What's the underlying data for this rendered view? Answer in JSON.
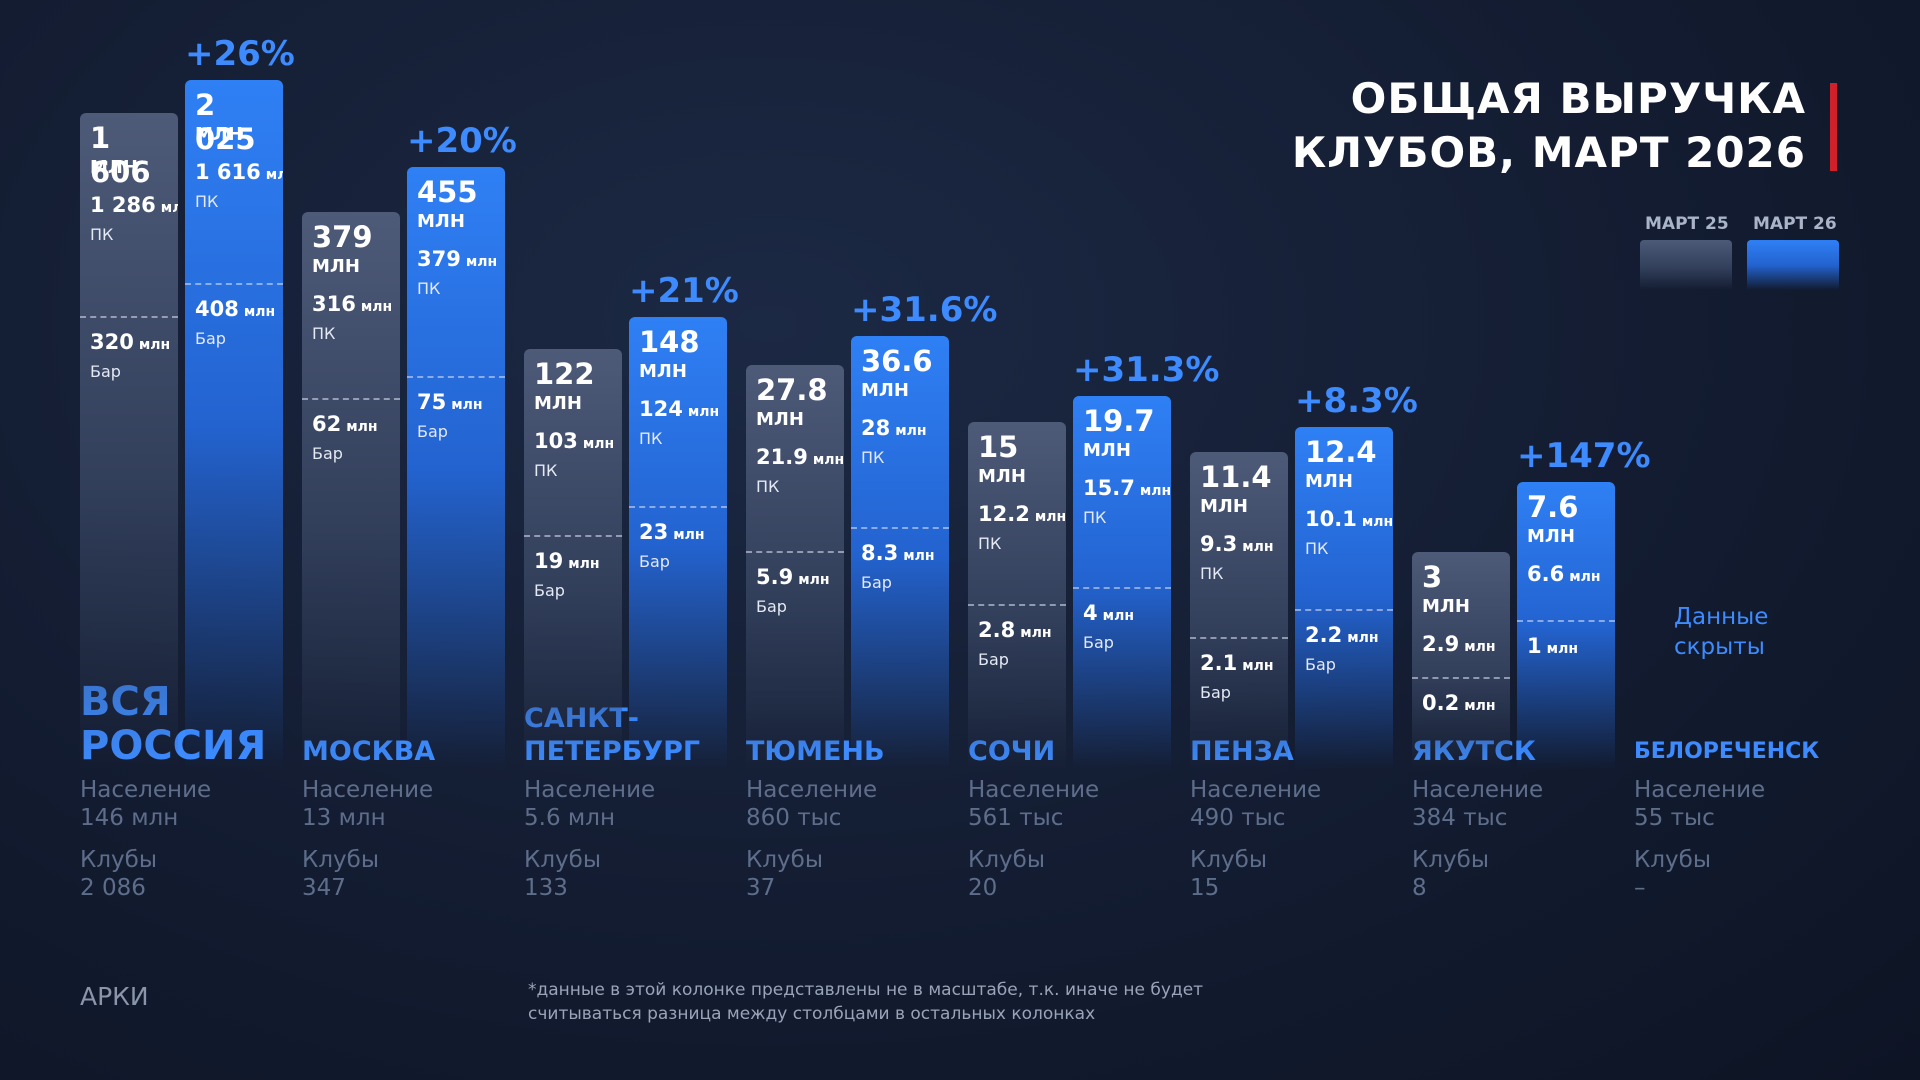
{
  "title_lines": [
    "ОБЩАЯ ВЫРУЧКА",
    "КЛУБОВ, МАРТ 2026"
  ],
  "legend": [
    "МАРТ 25",
    "МАРТ 26"
  ],
  "regions": [
    {
      "name": "ВСЯ РОССИЯ",
      "growth": "+26%",
      "population_label": "Население",
      "population": "146 млн",
      "clubs_label": "Клубы",
      "clubs": "2 086",
      "bars": [
        {
          "total": "1 606",
          "unit": "МЛН",
          "pk": {
            "value": "1 286",
            "unit": "млн",
            "label": "ПК"
          },
          "bar": {
            "value": "320",
            "unit": "млн",
            "label": "Бар"
          }
        },
        {
          "total": "2 025",
          "unit": "МЛН",
          "pk": {
            "value": "1 616",
            "unit": "млн",
            "label": "ПК"
          },
          "bar": {
            "value": "408",
            "unit": "млн",
            "label": "Бар"
          }
        }
      ]
    },
    {
      "name": "МОСКВА",
      "growth": "+20%",
      "population_label": "Население",
      "population": "13 млн",
      "clubs_label": "Клубы",
      "clubs": "347",
      "bars": [
        {
          "total": "379",
          "unit": "МЛН",
          "pk": {
            "value": "316",
            "unit": "млн",
            "label": "ПК"
          },
          "bar": {
            "value": "62",
            "unit": "млн",
            "label": "Бар"
          }
        },
        {
          "total": "455",
          "unit": "МЛН",
          "pk": {
            "value": "379",
            "unit": "млн",
            "label": "ПК"
          },
          "bar": {
            "value": "75",
            "unit": "млн",
            "label": "Бар"
          }
        }
      ]
    },
    {
      "name": "САНКТ-ПЕТЕРБУРГ",
      "growth": "+21%",
      "population_label": "Население",
      "population": "5.6 млн",
      "clubs_label": "Клубы",
      "clubs": "133",
      "bars": [
        {
          "total": "122",
          "unit": "МЛН",
          "pk": {
            "value": "103",
            "unit": "млн",
            "label": "ПК"
          },
          "bar": {
            "value": "19",
            "unit": "млн",
            "label": "Бар"
          }
        },
        {
          "total": "148",
          "unit": "МЛН",
          "pk": {
            "value": "124",
            "unit": "млн",
            "label": "ПК"
          },
          "bar": {
            "value": "23",
            "unit": "млн",
            "label": "Бар"
          }
        }
      ]
    },
    {
      "name": "ТЮМЕНЬ",
      "growth": "+31.6%",
      "population_label": "Население",
      "population": "860 тыс",
      "clubs_label": "Клубы",
      "clubs": "37",
      "bars": [
        {
          "total": "27.8",
          "unit": "МЛН",
          "pk": {
            "value": "21.9",
            "unit": "млн",
            "label": "ПК"
          },
          "bar": {
            "value": "5.9",
            "unit": "млн",
            "label": "Бар"
          }
        },
        {
          "total": "36.6",
          "unit": "МЛН",
          "pk": {
            "value": "28",
            "unit": "млн",
            "label": "ПК"
          },
          "bar": {
            "value": "8.3",
            "unit": "млн",
            "label": "Бар"
          }
        }
      ]
    },
    {
      "name": "СОЧИ",
      "growth": "+31.3%",
      "population_label": "Население",
      "population": "561 тыс",
      "clubs_label": "Клубы",
      "clubs": "20",
      "bars": [
        {
          "total": "15",
          "unit": "МЛН",
          "pk": {
            "value": "12.2",
            "unit": "млн",
            "label": "ПК"
          },
          "bar": {
            "value": "2.8",
            "unit": "млн",
            "label": "Бар"
          }
        },
        {
          "total": "19.7",
          "unit": "МЛН",
          "pk": {
            "value": "15.7",
            "unit": "млн",
            "label": "ПК"
          },
          "bar": {
            "value": "4",
            "unit": "млн",
            "label": "Бар"
          }
        }
      ]
    },
    {
      "name": "ПЕНЗА",
      "growth": "+8.3%",
      "population_label": "Население",
      "population": "490 тыс",
      "clubs_label": "Клубы",
      "clubs": "15",
      "bars": [
        {
          "total": "11.4",
          "unit": "МЛН",
          "pk": {
            "value": "9.3",
            "unit": "млн",
            "label": "ПК"
          },
          "bar": {
            "value": "2.1",
            "unit": "млн",
            "label": "Бар"
          }
        },
        {
          "total": "12.4",
          "unit": "МЛН",
          "pk": {
            "value": "10.1",
            "unit": "млн",
            "label": "ПК"
          },
          "bar": {
            "value": "2.2",
            "unit": "млн",
            "label": "Бар"
          }
        }
      ]
    },
    {
      "name": "ЯКУТСК",
      "growth": "+147%",
      "population_label": "Население",
      "population": "384 тыс",
      "clubs_label": "Клубы",
      "clubs": "8",
      "bars": [
        {
          "total": "3",
          "unit": "МЛН",
          "pk": {
            "value": "2.9",
            "unit": "млн"
          },
          "bar": {
            "value": "0.2",
            "unit": "млн"
          }
        },
        {
          "total": "7.6",
          "unit": "МЛН",
          "pk": {
            "value": "6.6",
            "unit": "млн"
          },
          "bar": {
            "value": "1",
            "unit": "млн"
          }
        }
      ]
    },
    {
      "name": "БЕЛОРЕЧЕНСК",
      "hidden": "Данные скрыты",
      "population_label": "Население",
      "population": "55 тыс",
      "clubs_label": "Клубы",
      "clubs": "–"
    }
  ],
  "footer": "АРКИ",
  "note_lines": [
    "*данные в этой колонке представлены не в масштабе, т.к. иначе не будет",
    "считываться разница между столбцами в остальных колонках"
  ]
}
